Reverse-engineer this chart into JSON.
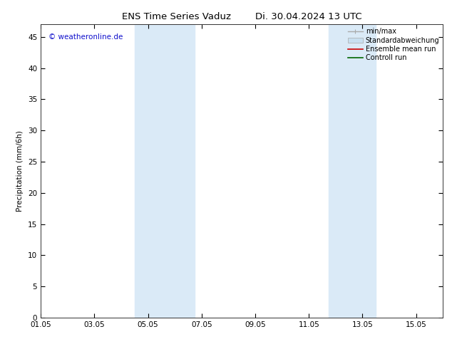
{
  "title": "ENS Time Series Vaduz        Di. 30.04.2024 13 UTC",
  "ylabel": "Precipitation (mm/6h)",
  "xlabel": "",
  "ylim": [
    0,
    47
  ],
  "yticks": [
    0,
    5,
    10,
    15,
    20,
    25,
    30,
    35,
    40,
    45
  ],
  "xlim": [
    0,
    15
  ],
  "xtick_positions": [
    0,
    2,
    4,
    6,
    8,
    10,
    12,
    14
  ],
  "xtick_labels": [
    "01.05",
    "03.05",
    "05.05",
    "07.05",
    "09.05",
    "11.05",
    "13.05",
    "15.05"
  ],
  "shaded_regions": [
    {
      "xstart": 3.5,
      "xend": 5.75
    },
    {
      "xstart": 10.75,
      "xend": 12.5
    }
  ],
  "shade_color": "#daeaf7",
  "watermark": "© weatheronline.de",
  "watermark_color": "#1111cc",
  "legend_items": [
    {
      "label": "min/max",
      "color": "#aaaaaa",
      "lw": 1.0
    },
    {
      "label": "Standardabweichung",
      "color": "#c8dff0",
      "lw": 6
    },
    {
      "label": "Ensemble mean run",
      "color": "#cc0000",
      "lw": 1.2
    },
    {
      "label": "Controll run",
      "color": "#006600",
      "lw": 1.2
    }
  ],
  "background_color": "#ffffff",
  "title_fontsize": 9.5,
  "axis_label_fontsize": 7.5,
  "tick_fontsize": 7.5,
  "legend_fontsize": 7,
  "watermark_fontsize": 7.5
}
